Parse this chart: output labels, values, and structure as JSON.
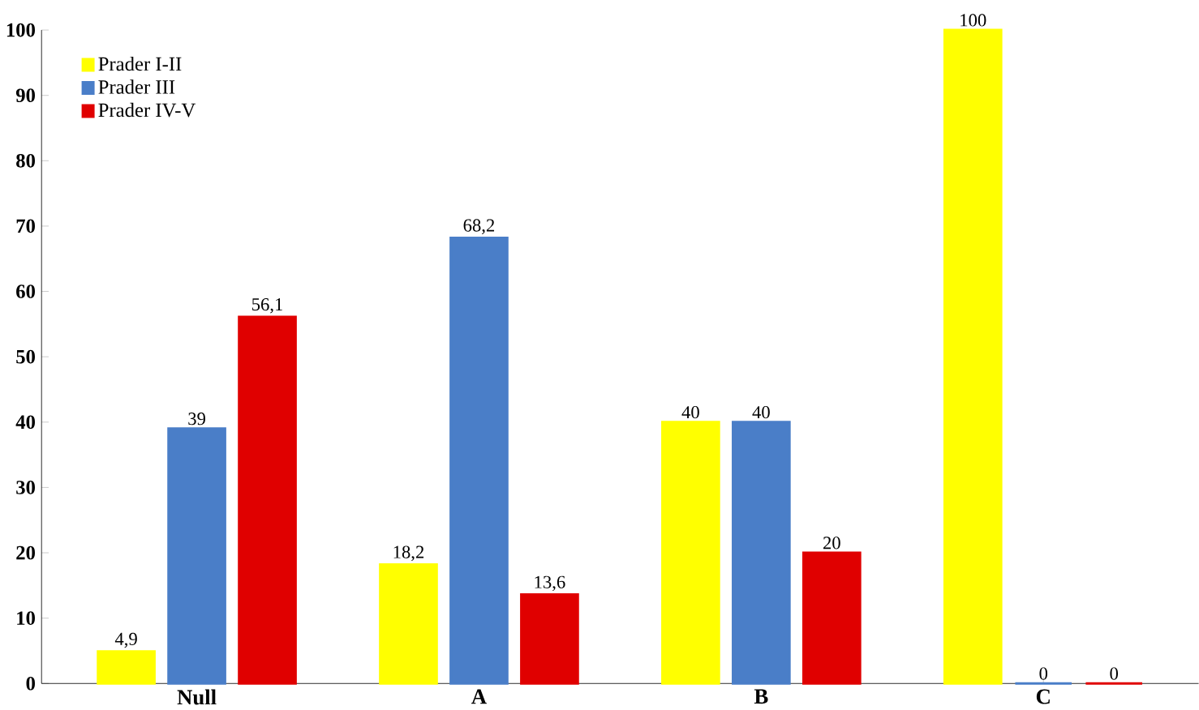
{
  "chart_data": {
    "type": "bar",
    "categories": [
      "Null",
      "A",
      "B",
      "C"
    ],
    "series": [
      {
        "name": "Prader I-II",
        "color": "#ffff00",
        "values": [
          4.9,
          18.2,
          40,
          100
        ],
        "value_labels": [
          "4,9",
          "18,2",
          "40",
          "100"
        ]
      },
      {
        "name": "Prader III",
        "color": "#4a7ec8",
        "values": [
          39,
          68.2,
          40,
          0
        ],
        "value_labels": [
          "39",
          "68,2",
          "40",
          "0"
        ]
      },
      {
        "name": "Prader IV-V",
        "color": "#e00000",
        "values": [
          56.1,
          13.6,
          20,
          0
        ],
        "value_labels": [
          "56,1",
          "13,6",
          "20",
          "0"
        ]
      }
    ],
    "ylim": [
      0,
      100
    ],
    "yticks": [
      0,
      10,
      20,
      30,
      40,
      50,
      60,
      70,
      80,
      90,
      100
    ],
    "legend": "top left",
    "grid": false
  }
}
